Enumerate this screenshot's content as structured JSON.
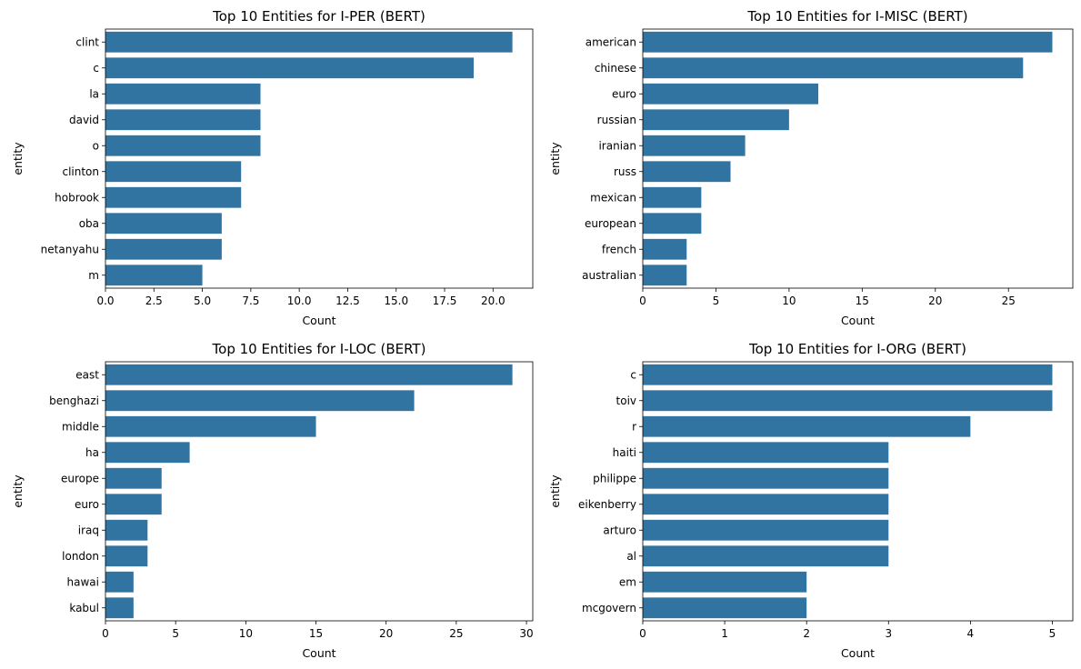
{
  "bar_color": "#3274a1",
  "chart_data": [
    {
      "type": "bar",
      "orientation": "horizontal",
      "title": "Top 10 Entities for I-PER (BERT)",
      "xlabel": "Count",
      "ylabel": "entity",
      "categories": [
        "clint",
        "c",
        "la",
        "david",
        "o",
        "clinton",
        "hobrook",
        "oba",
        "netanyahu",
        "m"
      ],
      "values": [
        21,
        19,
        8,
        8,
        8,
        7,
        7,
        6,
        6,
        5
      ],
      "xlim": [
        0,
        22.05
      ],
      "xticks": [
        0,
        2.5,
        5,
        7.5,
        10,
        12.5,
        15,
        17.5,
        20
      ],
      "xtick_labels": [
        "0.0",
        "2.5",
        "5.0",
        "7.5",
        "10.0",
        "12.5",
        "15.0",
        "17.5",
        "20.0"
      ]
    },
    {
      "type": "bar",
      "orientation": "horizontal",
      "title": "Top 10 Entities for I-MISC (BERT)",
      "xlabel": "Count",
      "ylabel": "entity",
      "categories": [
        "american",
        "chinese",
        "euro",
        "russian",
        "iranian",
        "russ",
        "mexican",
        "european",
        "french",
        "australian"
      ],
      "values": [
        28,
        26,
        12,
        10,
        7,
        6,
        4,
        4,
        3,
        3
      ],
      "xlim": [
        0,
        29.4
      ],
      "xticks": [
        0,
        5,
        10,
        15,
        20,
        25
      ],
      "xtick_labels": [
        "0",
        "5",
        "10",
        "15",
        "20",
        "25"
      ]
    },
    {
      "type": "bar",
      "orientation": "horizontal",
      "title": "Top 10 Entities for I-LOC (BERT)",
      "xlabel": "Count",
      "ylabel": "entity",
      "categories": [
        "east",
        "benghazi",
        "middle",
        "ha",
        "europe",
        "euro",
        "iraq",
        "london",
        "hawai",
        "kabul"
      ],
      "values": [
        29,
        22,
        15,
        6,
        4,
        4,
        3,
        3,
        2,
        2
      ],
      "xlim": [
        0,
        30.45
      ],
      "xticks": [
        0,
        5,
        10,
        15,
        20,
        25,
        30
      ],
      "xtick_labels": [
        "0",
        "5",
        "10",
        "15",
        "20",
        "25",
        "30"
      ]
    },
    {
      "type": "bar",
      "orientation": "horizontal",
      "title": "Top 10 Entities for I-ORG (BERT)",
      "xlabel": "Count",
      "ylabel": "entity",
      "categories": [
        "c",
        "toiv",
        "r",
        "haiti",
        "philippe",
        "eikenberry",
        "arturo",
        "al",
        "em",
        "mcgovern"
      ],
      "values": [
        5,
        5,
        4,
        3,
        3,
        3,
        3,
        3,
        2,
        2
      ],
      "xlim": [
        0,
        5.25
      ],
      "xticks": [
        0,
        1,
        2,
        3,
        4,
        5
      ],
      "xtick_labels": [
        "0",
        "1",
        "2",
        "3",
        "4",
        "5"
      ]
    }
  ]
}
